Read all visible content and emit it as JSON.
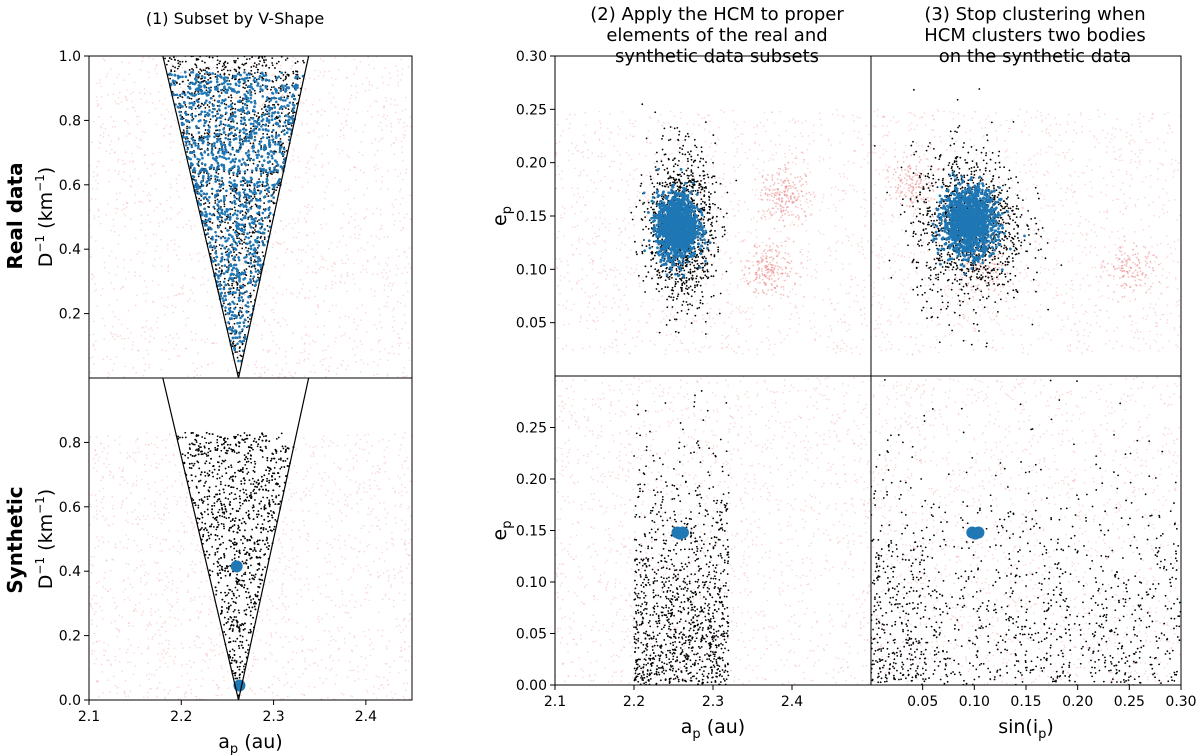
{
  "figure": {
    "col1_title": "(1) Subset by V-Shape",
    "col2_title_lines": [
      "(2) Apply the HCM to proper",
      "elements of the real and",
      "synthetic data subsets"
    ],
    "col3_title_lines": [
      "(3) Stop clustering when",
      "HCM clusters two bodies",
      "on the synthetic data"
    ],
    "row1_label": "Real data",
    "row2_label": "Synthetic",
    "colors": {
      "background": "#f4a6a6",
      "subset": "#000000",
      "cluster": "#1f77b4",
      "wedge": "#000000"
    }
  },
  "chart_data": [
    {
      "id": "real-vshape",
      "type": "scatter",
      "ylabel_base": "D",
      "ylabel_sup": "−1",
      "ylabel_unit_open": " (km",
      "ylabel_unit_sup": "−1",
      "ylabel_unit_close": ")",
      "xlim": [
        2.1,
        2.45
      ],
      "ylim": [
        0.0,
        1.0
      ],
      "xticks": [],
      "yticks": [
        "0.2",
        "0.4",
        "0.6",
        "0.8",
        "1.0"
      ],
      "ytick_values": [
        0.2,
        0.4,
        0.6,
        0.8,
        1.0
      ],
      "vshape": {
        "apex_x": 2.262,
        "apex_y": 0.0,
        "top_left_x": 2.18,
        "top_right_x": 2.338,
        "top_y": 1.0
      },
      "series": [
        {
          "role": "background",
          "x_range": [
            2.1,
            2.45
          ],
          "y_range": [
            0.0,
            1.0
          ]
        },
        {
          "role": "subset",
          "region": "wedge",
          "y_range": [
            0.0,
            1.0
          ]
        },
        {
          "role": "cluster",
          "region": "wedge",
          "y_range": [
            0.03,
            0.95
          ]
        }
      ]
    },
    {
      "id": "synthetic-vshape",
      "type": "scatter",
      "xlabel_base": "a",
      "xlabel_sub": "p",
      "xlabel_unit": " (au)",
      "ylabel_base": "D",
      "ylabel_sup": "−1",
      "ylabel_unit_open": " (km",
      "ylabel_unit_sup": "−1",
      "ylabel_unit_close": ")",
      "xlim": [
        2.1,
        2.45
      ],
      "ylim": [
        0.0,
        1.0
      ],
      "xticks": [
        "2.1",
        "2.2",
        "2.3",
        "2.4"
      ],
      "xtick_values": [
        2.1,
        2.2,
        2.3,
        2.4
      ],
      "yticks": [
        "0.0",
        "0.2",
        "0.4",
        "0.6",
        "0.8"
      ],
      "ytick_values": [
        0.0,
        0.2,
        0.4,
        0.6,
        0.8
      ],
      "vshape": {
        "apex_x": 2.262,
        "apex_y": 0.0,
        "top_left_x": 2.18,
        "top_right_x": 2.338,
        "top_y": 1.0
      },
      "series": [
        {
          "role": "background",
          "x_range": [
            2.1,
            2.45
          ],
          "y_range": [
            0.0,
            0.83
          ]
        },
        {
          "role": "subset",
          "region": "wedge",
          "y_range": [
            0.0,
            0.83
          ]
        },
        {
          "role": "cluster",
          "points": [
            [
              2.26,
              0.415
            ],
            [
              2.263,
              0.045
            ]
          ]
        }
      ]
    },
    {
      "id": "real-a-e",
      "type": "scatter",
      "ylabel_base": "e",
      "ylabel_sub": "p",
      "xlim": [
        2.1,
        2.5
      ],
      "ylim": [
        0.0,
        0.3
      ],
      "xticks": [],
      "yticks": [
        "0.05",
        "0.10",
        "0.15",
        "0.20",
        "0.25",
        "0.30"
      ],
      "ytick_values": [
        0.05,
        0.1,
        0.15,
        0.2,
        0.25,
        0.3
      ],
      "series": [
        {
          "role": "background",
          "x_range": [
            2.1,
            2.5
          ],
          "y_range": [
            0.02,
            0.25
          ],
          "concentrations": [
            {
              "x": 2.39,
              "y": 0.17
            },
            {
              "x": 2.37,
              "y": 0.1
            }
          ]
        },
        {
          "role": "subset",
          "center": [
            2.26,
            0.14
          ],
          "spread": [
            0.035,
            0.06
          ]
        },
        {
          "role": "cluster",
          "center": [
            2.255,
            0.14
          ],
          "spread": [
            0.025,
            0.03
          ]
        }
      ]
    },
    {
      "id": "real-sini-e",
      "type": "scatter",
      "xlim": [
        0.0,
        0.3
      ],
      "ylim": [
        0.0,
        0.3
      ],
      "xticks": [],
      "yticks": [],
      "series": [
        {
          "role": "background",
          "x_range": [
            0.0,
            0.3
          ],
          "y_range": [
            0.02,
            0.25
          ],
          "concentrations": [
            {
              "x": 0.04,
              "y": 0.18
            },
            {
              "x": 0.11,
              "y": 0.1
            },
            {
              "x": 0.25,
              "y": 0.1
            }
          ]
        },
        {
          "role": "subset",
          "center": [
            0.095,
            0.14
          ],
          "spread": [
            0.045,
            0.06
          ]
        },
        {
          "role": "cluster",
          "center": [
            0.095,
            0.145
          ],
          "spread": [
            0.025,
            0.03
          ]
        }
      ]
    },
    {
      "id": "synthetic-a-e",
      "type": "scatter",
      "xlabel_base": "a",
      "xlabel_sub": "p",
      "xlabel_unit": " (au)",
      "ylabel_base": "e",
      "ylabel_sub": "p",
      "xlim": [
        2.1,
        2.5
      ],
      "ylim": [
        0.0,
        0.3
      ],
      "xticks": [
        "2.1",
        "2.2",
        "2.3",
        "2.4"
      ],
      "xtick_values": [
        2.1,
        2.2,
        2.3,
        2.4
      ],
      "yticks": [
        "0.00",
        "0.05",
        "0.10",
        "0.15",
        "0.20",
        "0.25"
      ],
      "ytick_values": [
        0.0,
        0.05,
        0.1,
        0.15,
        0.2,
        0.25
      ],
      "series": [
        {
          "role": "background",
          "x_range": [
            2.1,
            2.5
          ],
          "y_range": [
            0.0,
            0.3
          ]
        },
        {
          "role": "subset",
          "x_range": [
            2.2,
            2.32
          ],
          "y_range": [
            0.0,
            0.28
          ]
        },
        {
          "role": "cluster",
          "points": [
            [
              2.255,
              0.148
            ],
            [
              2.262,
              0.148
            ],
            [
              2.258,
              0.147
            ]
          ]
        }
      ]
    },
    {
      "id": "synthetic-sini-e",
      "type": "scatter",
      "xlabel_base": "sin(i",
      "xlabel_sub": "p",
      "xlabel_unit": ")",
      "xlim": [
        0.0,
        0.3
      ],
      "ylim": [
        0.0,
        0.3
      ],
      "xticks": [
        "0.05",
        "0.10",
        "0.15",
        "0.20",
        "0.25",
        "0.30"
      ],
      "xtick_values": [
        0.05,
        0.1,
        0.15,
        0.2,
        0.25,
        0.3
      ],
      "yticks": [],
      "series": [
        {
          "role": "background",
          "x_range": [
            0.0,
            0.3
          ],
          "y_range": [
            0.0,
            0.3
          ]
        },
        {
          "role": "subset",
          "x_range": [
            0.0,
            0.3
          ],
          "y_range": [
            0.0,
            0.28
          ]
        },
        {
          "role": "cluster",
          "points": [
            [
              0.098,
              0.148
            ],
            [
              0.104,
              0.148
            ],
            [
              0.101,
              0.147
            ]
          ]
        }
      ]
    }
  ]
}
